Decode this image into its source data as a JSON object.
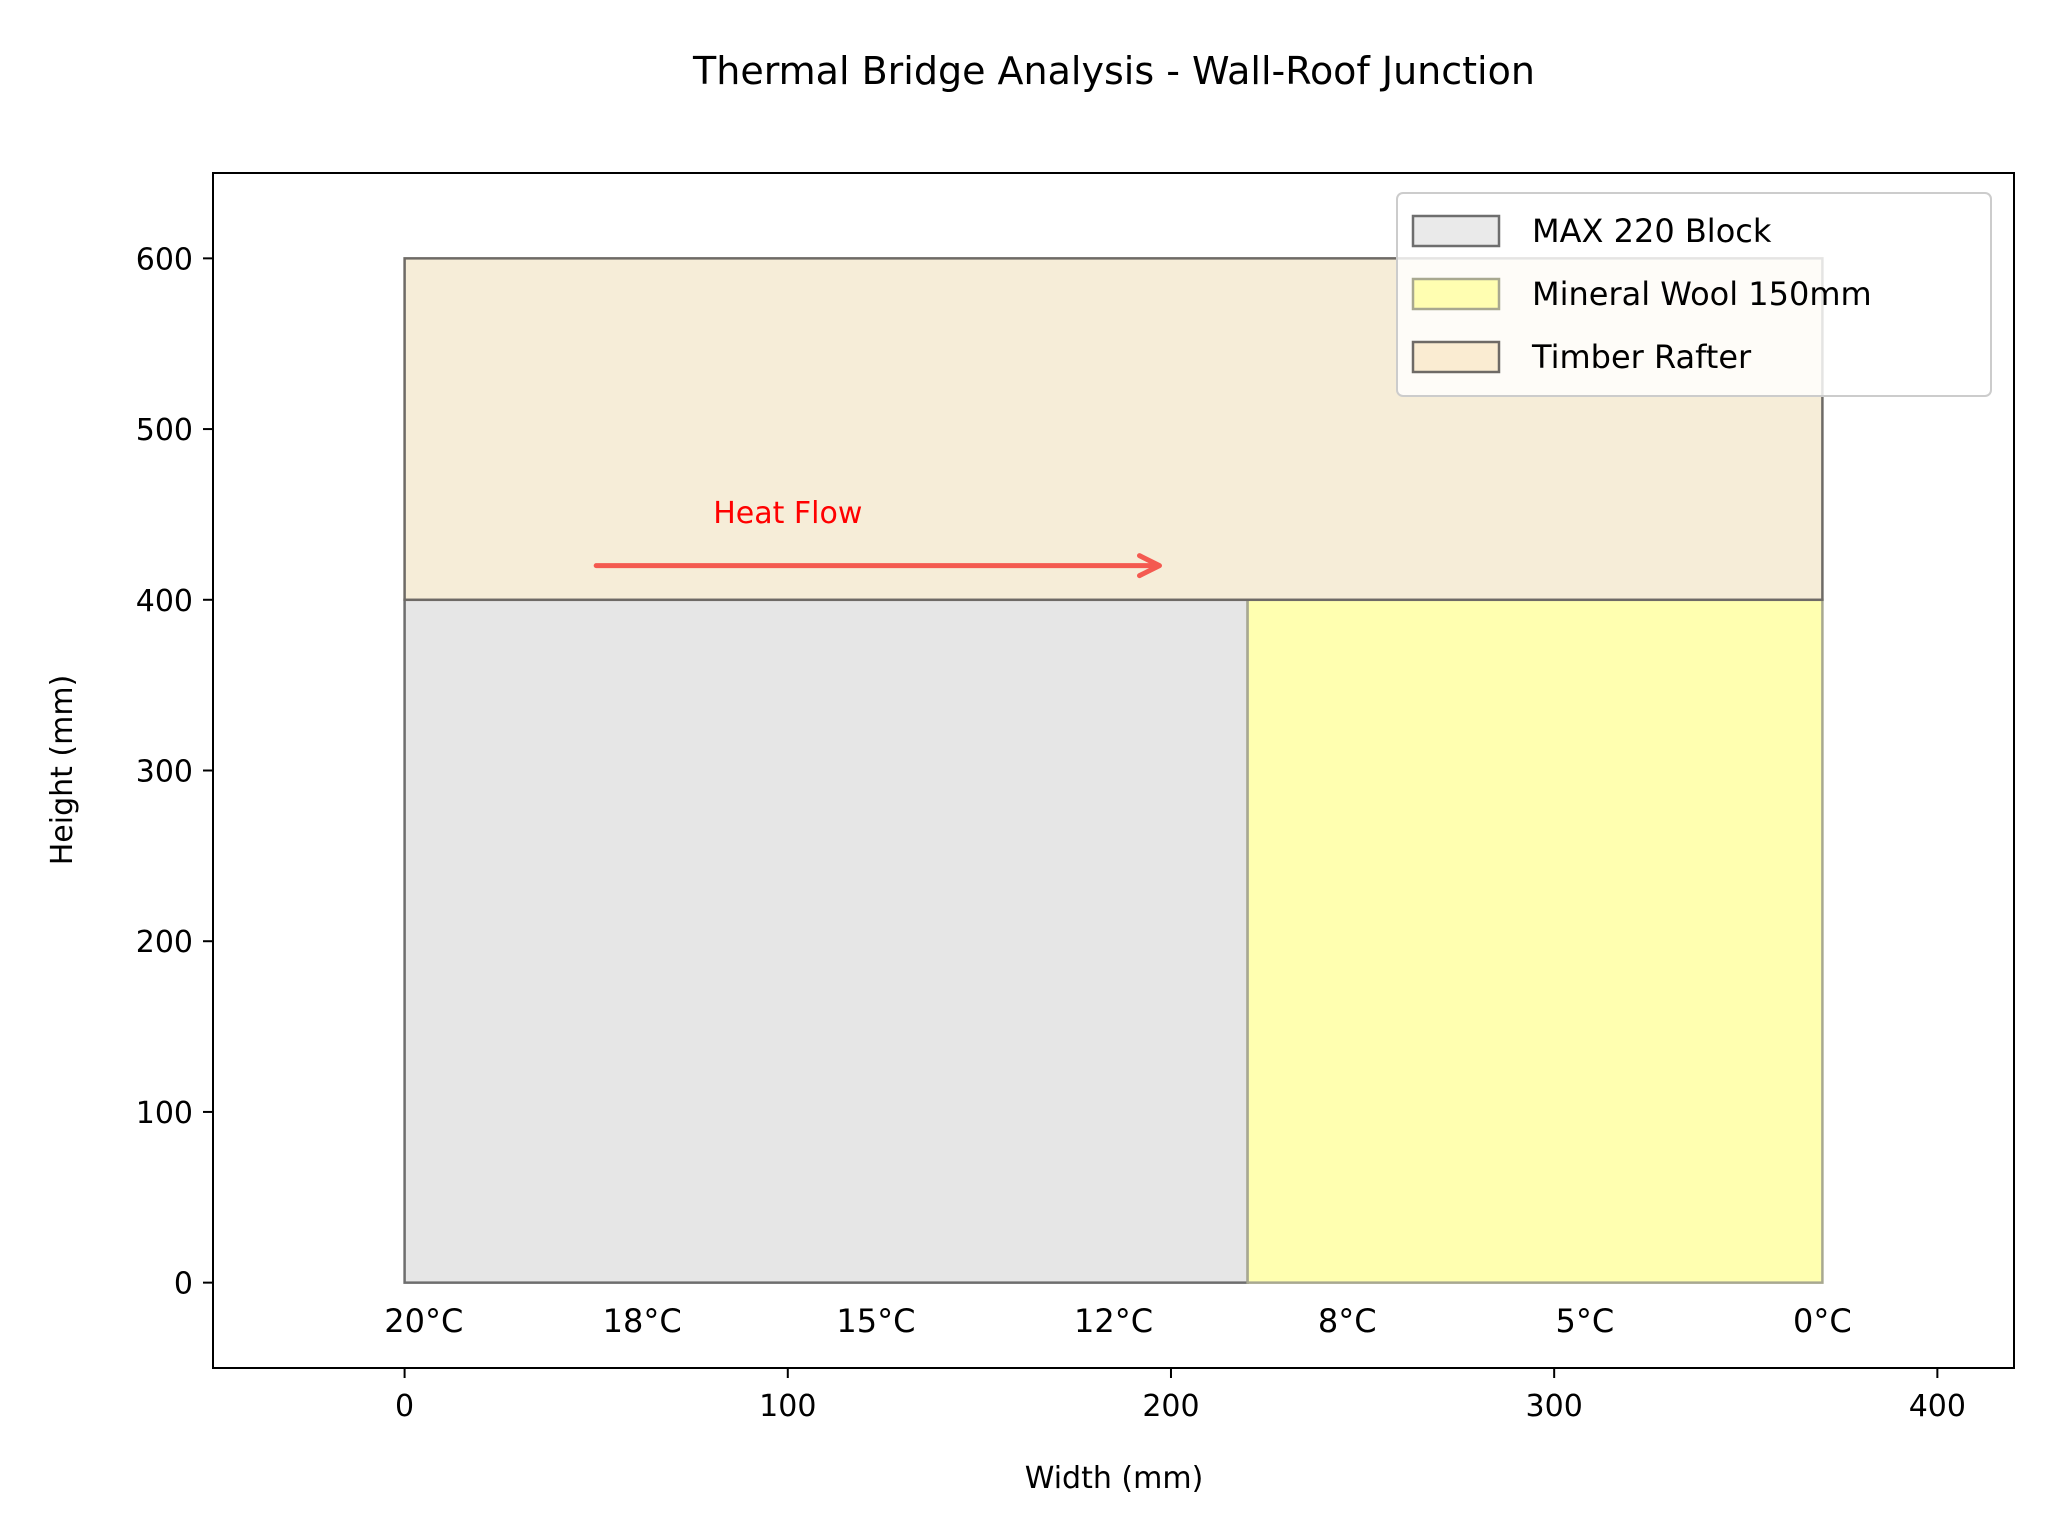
{
  "chart_data": {
    "type": "area",
    "title": "Thermal Bridge Analysis - Wall-Roof Junction",
    "xlabel": "Width (mm)",
    "ylabel": "Height (mm)",
    "xlim": [
      -50,
      420
    ],
    "ylim": [
      -50,
      650
    ],
    "xticks": [
      0,
      100,
      200,
      300,
      400
    ],
    "yticks": [
      0,
      100,
      200,
      300,
      400,
      500,
      600
    ],
    "grid": false,
    "legend_position": "top-right",
    "regions": [
      {
        "name": "MAX 220 Block",
        "x": [
          0,
          220
        ],
        "y": [
          0,
          400
        ],
        "fill": "#e6e6e6",
        "edge": "#6e6e6e",
        "legend_swatch": "#e6e6e6"
      },
      {
        "name": "Mineral Wool 150mm",
        "x": [
          220,
          370
        ],
        "y": [
          0,
          400
        ],
        "fill": "#ffffb0",
        "edge": "#a8a890",
        "legend_swatch": "#ffff99"
      },
      {
        "name": "Timber Rafter",
        "x": [
          0,
          370
        ],
        "y": [
          400,
          600
        ],
        "fill": "#f6edd8",
        "edge": "#6e6a66",
        "legend_swatch": "#f5deb3"
      }
    ],
    "temperature_labels": [
      {
        "label": "20°C",
        "x": 5,
        "y": -22
      },
      {
        "label": "18°C",
        "x": 62,
        "y": -22
      },
      {
        "label": "15°C",
        "x": 123,
        "y": -22
      },
      {
        "label": "12°C",
        "x": 185,
        "y": -22
      },
      {
        "label": "8°C",
        "x": 246,
        "y": -22
      },
      {
        "label": "5°C",
        "x": 308,
        "y": -22
      },
      {
        "label": "0°C",
        "x": 370,
        "y": -22
      }
    ],
    "annotation": {
      "text": "Heat Flow",
      "text_x": 100,
      "text_y": 445,
      "arrow_from": [
        50,
        420
      ],
      "arrow_to": [
        197,
        420
      ],
      "color": "#ff0000",
      "arrow_color": "#f45a50"
    }
  }
}
